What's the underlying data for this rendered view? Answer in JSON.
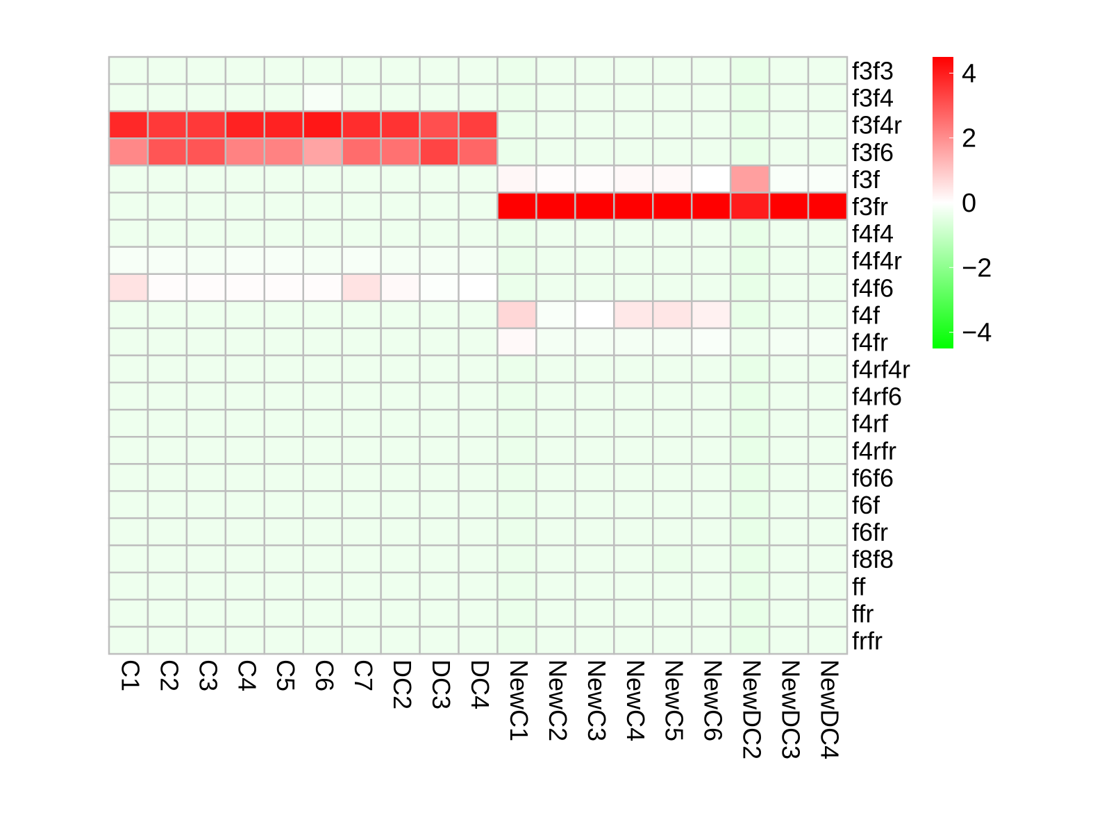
{
  "chart_data": {
    "type": "heatmap",
    "columns": [
      "C1",
      "C2",
      "C3",
      "C4",
      "C5",
      "C6",
      "C7",
      "DC2",
      "DC3",
      "DC4",
      "NewC1",
      "NewC2",
      "NewC3",
      "NewC4",
      "NewC5",
      "NewC6",
      "NewDC2",
      "NewDC3",
      "NewDC4"
    ],
    "rows": [
      "f3f3",
      "f3f4",
      "f3f4r",
      "f3f6",
      "f3f",
      "f3fr",
      "f4f4",
      "f4f4r",
      "f4f6",
      "f4f",
      "f4fr",
      "f4rf4r",
      "f4rf6",
      "f4rf",
      "f4rfr",
      "f6f6",
      "f6f",
      "f6fr",
      "f8f8",
      "ff",
      "ffr",
      "frfr"
    ],
    "values": [
      [
        -0.3,
        -0.3,
        -0.3,
        -0.3,
        -0.3,
        -0.3,
        -0.3,
        -0.3,
        -0.3,
        -0.3,
        -0.35,
        -0.3,
        -0.3,
        -0.3,
        -0.3,
        -0.3,
        -0.4,
        -0.3,
        -0.3
      ],
      [
        -0.3,
        -0.3,
        -0.3,
        -0.3,
        -0.3,
        -0.15,
        -0.3,
        -0.3,
        -0.3,
        -0.3,
        -0.35,
        -0.3,
        -0.3,
        -0.3,
        -0.3,
        -0.3,
        -0.4,
        -0.3,
        -0.3
      ],
      [
        3.8,
        3.5,
        3.5,
        3.9,
        3.9,
        4.1,
        3.7,
        3.6,
        3.1,
        3.4,
        -0.35,
        -0.3,
        -0.3,
        -0.3,
        -0.3,
        -0.3,
        -0.4,
        -0.3,
        -0.3
      ],
      [
        2.1,
        3.0,
        3.0,
        2.2,
        2.2,
        1.6,
        2.6,
        2.5,
        3.3,
        2.7,
        -0.35,
        -0.3,
        -0.3,
        -0.3,
        -0.3,
        -0.3,
        -0.4,
        -0.3,
        -0.3
      ],
      [
        -0.3,
        -0.3,
        -0.3,
        -0.3,
        -0.3,
        -0.3,
        -0.3,
        -0.3,
        -0.3,
        -0.3,
        0.15,
        0.05,
        0.05,
        0.1,
        0.1,
        0.0,
        1.7,
        -0.1,
        -0.1
      ],
      [
        -0.3,
        -0.3,
        -0.3,
        -0.3,
        -0.3,
        -0.3,
        -0.3,
        -0.3,
        -0.3,
        -0.3,
        4.5,
        4.5,
        4.5,
        4.5,
        4.5,
        4.5,
        4.0,
        4.5,
        4.5
      ],
      [
        -0.3,
        -0.3,
        -0.3,
        -0.3,
        -0.3,
        -0.3,
        -0.3,
        -0.3,
        -0.3,
        -0.3,
        -0.35,
        -0.3,
        -0.3,
        -0.3,
        -0.3,
        -0.3,
        -0.4,
        -0.3,
        -0.3
      ],
      [
        -0.15,
        -0.15,
        -0.2,
        -0.15,
        -0.15,
        -0.2,
        -0.15,
        -0.2,
        -0.2,
        -0.2,
        -0.35,
        -0.3,
        -0.3,
        -0.3,
        -0.3,
        -0.3,
        -0.4,
        -0.3,
        -0.3
      ],
      [
        0.5,
        0.05,
        0.05,
        0.05,
        0.05,
        0.05,
        0.5,
        0.1,
        -0.05,
        0.0,
        -0.35,
        -0.3,
        -0.3,
        -0.3,
        -0.3,
        -0.3,
        -0.4,
        -0.3,
        -0.3
      ],
      [
        -0.3,
        -0.3,
        -0.3,
        -0.3,
        -0.3,
        -0.3,
        -0.3,
        -0.3,
        -0.3,
        -0.3,
        0.7,
        -0.1,
        0.0,
        0.4,
        0.45,
        0.25,
        -0.4,
        -0.3,
        -0.3
      ],
      [
        -0.3,
        -0.3,
        -0.3,
        -0.3,
        -0.3,
        -0.3,
        -0.3,
        -0.3,
        -0.3,
        -0.3,
        0.1,
        -0.2,
        -0.2,
        -0.2,
        -0.2,
        -0.1,
        -0.3,
        -0.2,
        -0.2
      ],
      [
        -0.3,
        -0.3,
        -0.3,
        -0.3,
        -0.3,
        -0.3,
        -0.3,
        -0.3,
        -0.3,
        -0.3,
        -0.35,
        -0.3,
        -0.3,
        -0.3,
        -0.3,
        -0.3,
        -0.4,
        -0.3,
        -0.3
      ],
      [
        -0.3,
        -0.3,
        -0.3,
        -0.3,
        -0.3,
        -0.3,
        -0.3,
        -0.3,
        -0.3,
        -0.3,
        -0.35,
        -0.3,
        -0.3,
        -0.3,
        -0.3,
        -0.3,
        -0.4,
        -0.3,
        -0.3
      ],
      [
        -0.3,
        -0.3,
        -0.3,
        -0.3,
        -0.3,
        -0.3,
        -0.3,
        -0.3,
        -0.3,
        -0.3,
        -0.35,
        -0.3,
        -0.3,
        -0.3,
        -0.3,
        -0.3,
        -0.4,
        -0.3,
        -0.3
      ],
      [
        -0.3,
        -0.3,
        -0.3,
        -0.3,
        -0.3,
        -0.3,
        -0.3,
        -0.3,
        -0.3,
        -0.3,
        -0.35,
        -0.3,
        -0.3,
        -0.3,
        -0.3,
        -0.3,
        -0.4,
        -0.3,
        -0.3
      ],
      [
        -0.3,
        -0.3,
        -0.3,
        -0.3,
        -0.3,
        -0.3,
        -0.3,
        -0.3,
        -0.3,
        -0.3,
        -0.35,
        -0.3,
        -0.3,
        -0.3,
        -0.3,
        -0.3,
        -0.4,
        -0.3,
        -0.3
      ],
      [
        -0.3,
        -0.3,
        -0.3,
        -0.3,
        -0.3,
        -0.3,
        -0.3,
        -0.3,
        -0.3,
        -0.3,
        -0.35,
        -0.3,
        -0.3,
        -0.3,
        -0.3,
        -0.3,
        -0.4,
        -0.3,
        -0.3
      ],
      [
        -0.3,
        -0.3,
        -0.3,
        -0.3,
        -0.3,
        -0.3,
        -0.3,
        -0.3,
        -0.3,
        -0.3,
        -0.35,
        -0.3,
        -0.3,
        -0.3,
        -0.3,
        -0.3,
        -0.4,
        -0.3,
        -0.3
      ],
      [
        -0.3,
        -0.3,
        -0.3,
        -0.3,
        -0.3,
        -0.3,
        -0.3,
        -0.3,
        -0.3,
        -0.3,
        -0.35,
        -0.3,
        -0.3,
        -0.3,
        -0.35,
        -0.3,
        -0.4,
        -0.3,
        -0.3
      ],
      [
        -0.3,
        -0.3,
        -0.3,
        -0.3,
        -0.3,
        -0.3,
        -0.3,
        -0.3,
        -0.3,
        -0.3,
        -0.35,
        -0.3,
        -0.3,
        -0.3,
        -0.3,
        -0.3,
        -0.4,
        -0.3,
        -0.3
      ],
      [
        -0.3,
        -0.3,
        -0.3,
        -0.3,
        -0.3,
        -0.3,
        -0.3,
        -0.3,
        -0.3,
        -0.3,
        -0.35,
        -0.3,
        -0.3,
        -0.3,
        -0.3,
        -0.3,
        -0.4,
        -0.3,
        -0.3
      ],
      [
        -0.3,
        -0.3,
        -0.3,
        -0.3,
        -0.3,
        -0.3,
        -0.3,
        -0.3,
        -0.3,
        -0.3,
        -0.35,
        -0.3,
        -0.3,
        -0.3,
        -0.3,
        -0.3,
        -0.4,
        -0.3,
        -0.3
      ]
    ],
    "color_scale": {
      "min": -4.5,
      "max": 4.5,
      "low_color": "#00ff00",
      "mid_color": "#ffffff",
      "high_color": "#ff0000",
      "ticks": [
        4,
        2,
        0,
        -2,
        -4
      ],
      "tick_labels": [
        "4",
        "2",
        "0",
        "−2",
        "−4"
      ]
    },
    "cell_border_color": "#bebebe",
    "legend_position": "right",
    "title": "",
    "xlabel": "",
    "ylabel": ""
  }
}
